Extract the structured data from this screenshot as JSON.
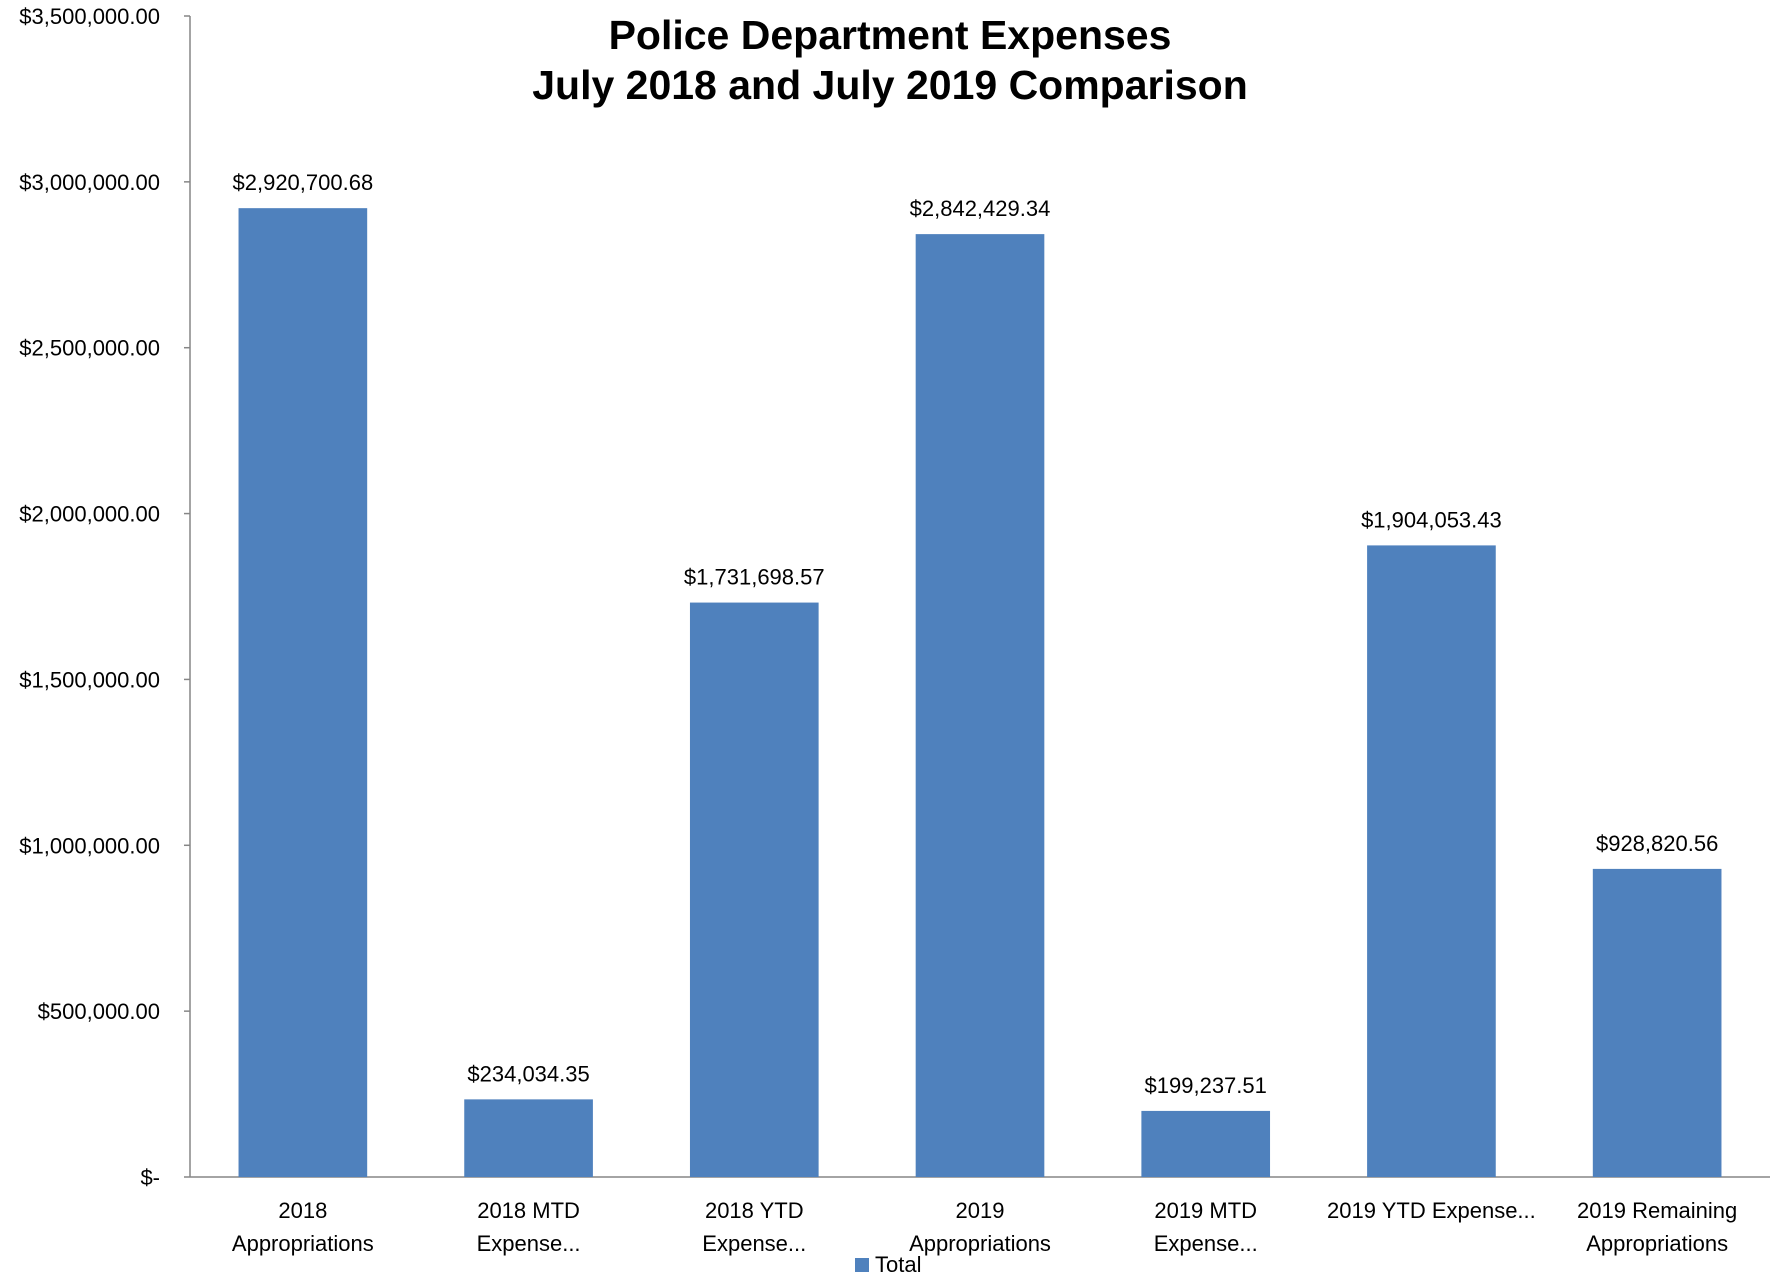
{
  "chart_data": {
    "type": "bar",
    "title": [
      "Police Department Expenses",
      "July 2018 and July 2019 Comparison"
    ],
    "categories": [
      [
        "2018",
        "Appropriations"
      ],
      [
        "2018 MTD",
        "Expense..."
      ],
      [
        "2018 YTD",
        "Expense..."
      ],
      [
        "2019",
        "Appropriations"
      ],
      [
        "2019 MTD",
        "Expense..."
      ],
      [
        "2019 YTD Expense..."
      ],
      [
        "2019 Remaining",
        "Appropriations"
      ]
    ],
    "series": [
      {
        "name": "Total",
        "values": [
          2920700.68,
          234034.35,
          1731698.57,
          2842429.34,
          199237.51,
          1904053.43,
          928820.56
        ],
        "labels": [
          "$2,920,700.68",
          "$234,034.35",
          "$1,731,698.57",
          "$2,842,429.34",
          "$199,237.51",
          "$1,904,053.43",
          "$928,820.56"
        ]
      }
    ],
    "ylim": [
      0,
      3500000
    ],
    "yticks": [
      {
        "value": 0,
        "label": "$-"
      },
      {
        "value": 500000,
        "label": "$500,000.00"
      },
      {
        "value": 1000000,
        "label": "$1,000,000.00"
      },
      {
        "value": 1500000,
        "label": "$1,500,000.00"
      },
      {
        "value": 2000000,
        "label": "$2,000,000.00"
      },
      {
        "value": 2500000,
        "label": "$2,500,000.00"
      },
      {
        "value": 3000000,
        "label": "$3,000,000.00"
      },
      {
        "value": 3500000,
        "label": "$3,500,000.00"
      }
    ],
    "grid": false,
    "legend": {
      "position": "bottom",
      "label": "Total"
    },
    "colors": {
      "bar": "#4f81bd",
      "axis": "#868686"
    }
  }
}
